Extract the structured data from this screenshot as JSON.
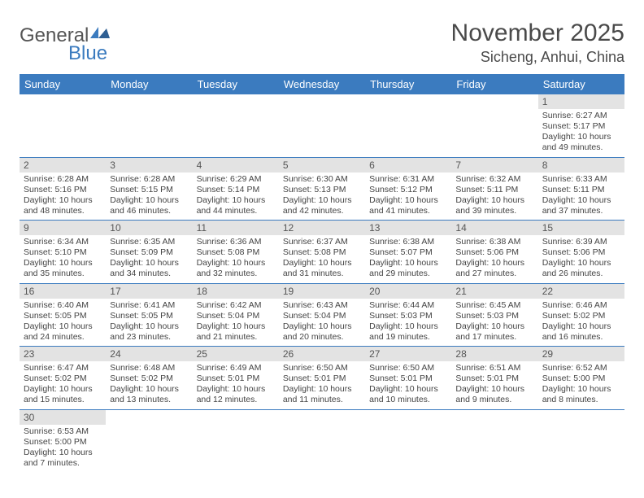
{
  "logo": {
    "general": "General",
    "blue": "Blue"
  },
  "title": "November 2025",
  "location": "Sicheng, Anhui, China",
  "colors": {
    "header_bg": "#3b7bbf",
    "header_text": "#ffffff",
    "daynum_bg": "#e3e3e3",
    "border": "#3b7bbf",
    "title_color": "#4a4a4a"
  },
  "weekdays": [
    "Sunday",
    "Monday",
    "Tuesday",
    "Wednesday",
    "Thursday",
    "Friday",
    "Saturday"
  ],
  "days": {
    "1": {
      "sunrise": "6:27 AM",
      "sunset": "5:17 PM",
      "daylight": "10 hours and 49 minutes."
    },
    "2": {
      "sunrise": "6:28 AM",
      "sunset": "5:16 PM",
      "daylight": "10 hours and 48 minutes."
    },
    "3": {
      "sunrise": "6:28 AM",
      "sunset": "5:15 PM",
      "daylight": "10 hours and 46 minutes."
    },
    "4": {
      "sunrise": "6:29 AM",
      "sunset": "5:14 PM",
      "daylight": "10 hours and 44 minutes."
    },
    "5": {
      "sunrise": "6:30 AM",
      "sunset": "5:13 PM",
      "daylight": "10 hours and 42 minutes."
    },
    "6": {
      "sunrise": "6:31 AM",
      "sunset": "5:12 PM",
      "daylight": "10 hours and 41 minutes."
    },
    "7": {
      "sunrise": "6:32 AM",
      "sunset": "5:11 PM",
      "daylight": "10 hours and 39 minutes."
    },
    "8": {
      "sunrise": "6:33 AM",
      "sunset": "5:11 PM",
      "daylight": "10 hours and 37 minutes."
    },
    "9": {
      "sunrise": "6:34 AM",
      "sunset": "5:10 PM",
      "daylight": "10 hours and 35 minutes."
    },
    "10": {
      "sunrise": "6:35 AM",
      "sunset": "5:09 PM",
      "daylight": "10 hours and 34 minutes."
    },
    "11": {
      "sunrise": "6:36 AM",
      "sunset": "5:08 PM",
      "daylight": "10 hours and 32 minutes."
    },
    "12": {
      "sunrise": "6:37 AM",
      "sunset": "5:08 PM",
      "daylight": "10 hours and 31 minutes."
    },
    "13": {
      "sunrise": "6:38 AM",
      "sunset": "5:07 PM",
      "daylight": "10 hours and 29 minutes."
    },
    "14": {
      "sunrise": "6:38 AM",
      "sunset": "5:06 PM",
      "daylight": "10 hours and 27 minutes."
    },
    "15": {
      "sunrise": "6:39 AM",
      "sunset": "5:06 PM",
      "daylight": "10 hours and 26 minutes."
    },
    "16": {
      "sunrise": "6:40 AM",
      "sunset": "5:05 PM",
      "daylight": "10 hours and 24 minutes."
    },
    "17": {
      "sunrise": "6:41 AM",
      "sunset": "5:05 PM",
      "daylight": "10 hours and 23 minutes."
    },
    "18": {
      "sunrise": "6:42 AM",
      "sunset": "5:04 PM",
      "daylight": "10 hours and 21 minutes."
    },
    "19": {
      "sunrise": "6:43 AM",
      "sunset": "5:04 PM",
      "daylight": "10 hours and 20 minutes."
    },
    "20": {
      "sunrise": "6:44 AM",
      "sunset": "5:03 PM",
      "daylight": "10 hours and 19 minutes."
    },
    "21": {
      "sunrise": "6:45 AM",
      "sunset": "5:03 PM",
      "daylight": "10 hours and 17 minutes."
    },
    "22": {
      "sunrise": "6:46 AM",
      "sunset": "5:02 PM",
      "daylight": "10 hours and 16 minutes."
    },
    "23": {
      "sunrise": "6:47 AM",
      "sunset": "5:02 PM",
      "daylight": "10 hours and 15 minutes."
    },
    "24": {
      "sunrise": "6:48 AM",
      "sunset": "5:02 PM",
      "daylight": "10 hours and 13 minutes."
    },
    "25": {
      "sunrise": "6:49 AM",
      "sunset": "5:01 PM",
      "daylight": "10 hours and 12 minutes."
    },
    "26": {
      "sunrise": "6:50 AM",
      "sunset": "5:01 PM",
      "daylight": "10 hours and 11 minutes."
    },
    "27": {
      "sunrise": "6:50 AM",
      "sunset": "5:01 PM",
      "daylight": "10 hours and 10 minutes."
    },
    "28": {
      "sunrise": "6:51 AM",
      "sunset": "5:01 PM",
      "daylight": "10 hours and 9 minutes."
    },
    "29": {
      "sunrise": "6:52 AM",
      "sunset": "5:00 PM",
      "daylight": "10 hours and 8 minutes."
    },
    "30": {
      "sunrise": "6:53 AM",
      "sunset": "5:00 PM",
      "daylight": "10 hours and 7 minutes."
    }
  },
  "labels": {
    "sunrise": "Sunrise:",
    "sunset": "Sunset:",
    "daylight": "Daylight:"
  },
  "layout": {
    "first_day_column": 6,
    "total_days": 30,
    "columns": 7
  }
}
